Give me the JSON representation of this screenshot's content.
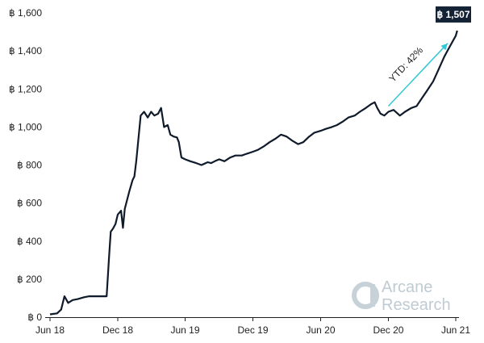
{
  "chart_data": {
    "type": "line",
    "title": "",
    "xlabel": "",
    "ylabel": "",
    "y_unit_prefix": "฿",
    "ylim": [
      0,
      1600
    ],
    "y_ticks": [
      0,
      200,
      400,
      600,
      800,
      1000,
      1200,
      1400,
      1600
    ],
    "y_tick_labels": [
      "฿ 0",
      "฿ 200",
      "฿ 400",
      "฿ 600",
      "฿ 800",
      "฿ 1,000",
      "฿ 1,200",
      "฿ 1,400",
      "฿ 1,600"
    ],
    "x_tick_labels": [
      "Jun 18",
      "Dec 18",
      "Jun 19",
      "Dec 19",
      "Jun 20",
      "Dec 20",
      "Jun 21"
    ],
    "x_ticks": [
      "2018-06",
      "2018-12",
      "2019-06",
      "2019-12",
      "2020-06",
      "2020-12",
      "2021-06"
    ],
    "xlim": [
      "2018-06",
      "2021-06"
    ],
    "grid": false,
    "line_color": "#0f1a2b",
    "series": [
      {
        "name": "",
        "x": [
          "2018-06-01",
          "2018-06-20",
          "2018-07-01",
          "2018-07-10",
          "2018-07-20",
          "2018-08-01",
          "2018-08-15",
          "2018-09-01",
          "2018-09-15",
          "2018-10-01",
          "2018-10-15",
          "2018-11-01",
          "2018-11-08",
          "2018-11-12",
          "2018-11-14",
          "2018-11-18",
          "2018-11-25",
          "2018-12-01",
          "2018-12-10",
          "2018-12-15",
          "2018-12-20",
          "2019-01-01",
          "2019-01-10",
          "2019-01-15",
          "2019-01-20",
          "2019-02-01",
          "2019-02-10",
          "2019-02-20",
          "2019-03-01",
          "2019-03-10",
          "2019-03-20",
          "2019-03-28",
          "2019-04-05",
          "2019-04-15",
          "2019-04-22",
          "2019-05-01",
          "2019-05-10",
          "2019-05-15",
          "2019-05-22",
          "2019-06-01",
          "2019-06-15",
          "2019-07-01",
          "2019-07-15",
          "2019-08-01",
          "2019-08-10",
          "2019-08-20",
          "2019-09-01",
          "2019-09-15",
          "2019-10-01",
          "2019-10-15",
          "2019-11-01",
          "2019-11-15",
          "2019-12-01",
          "2019-12-15",
          "2020-01-01",
          "2020-01-15",
          "2020-02-01",
          "2020-02-15",
          "2020-03-01",
          "2020-03-15",
          "2020-04-01",
          "2020-04-15",
          "2020-05-01",
          "2020-05-15",
          "2020-06-01",
          "2020-06-15",
          "2020-07-01",
          "2020-07-15",
          "2020-08-01",
          "2020-08-15",
          "2020-09-01",
          "2020-09-15",
          "2020-10-01",
          "2020-10-15",
          "2020-10-25",
          "2020-11-01",
          "2020-11-10",
          "2020-11-20",
          "2020-12-01",
          "2020-12-15",
          "2021-01-01",
          "2021-01-15",
          "2021-02-01",
          "2021-02-15",
          "2021-03-01",
          "2021-03-15",
          "2021-04-01",
          "2021-04-15",
          "2021-05-01",
          "2021-05-15",
          "2021-06-01",
          "2021-06-05"
        ],
        "y": [
          15,
          20,
          40,
          110,
          75,
          90,
          95,
          105,
          110,
          110,
          110,
          110,
          330,
          450,
          455,
          465,
          490,
          540,
          560,
          470,
          570,
          660,
          720,
          740,
          820,
          1060,
          1080,
          1050,
          1080,
          1060,
          1070,
          1100,
          1000,
          1010,
          960,
          950,
          945,
          920,
          840,
          830,
          820,
          810,
          800,
          815,
          810,
          820,
          830,
          820,
          840,
          850,
          850,
          860,
          870,
          880,
          900,
          920,
          940,
          960,
          950,
          930,
          910,
          920,
          950,
          970,
          980,
          990,
          1000,
          1010,
          1030,
          1050,
          1060,
          1080,
          1100,
          1120,
          1130,
          1100,
          1070,
          1060,
          1080,
          1090,
          1060,
          1080,
          1100,
          1110,
          1150,
          1190,
          1240,
          1300,
          1370,
          1420,
          1480,
          1507
        ]
      }
    ],
    "annotations": [
      {
        "text": "YTD: 42%",
        "color": "#1f1f1f",
        "arrow_color": "#33c8d6",
        "arrow_from": [
          "2020-12-01",
          1110
        ],
        "arrow_to": [
          "2021-05-10",
          1440
        ]
      },
      {
        "text": "฿ 1,507",
        "type": "badge",
        "value": 1507,
        "x": "2021-06-05",
        "bg": "#142235",
        "fg": "#ffffff"
      }
    ]
  },
  "brand": {
    "line1": "Arcane",
    "line2": "Research",
    "icon": "arcane-logo-icon",
    "color": "#bfcbd2"
  }
}
